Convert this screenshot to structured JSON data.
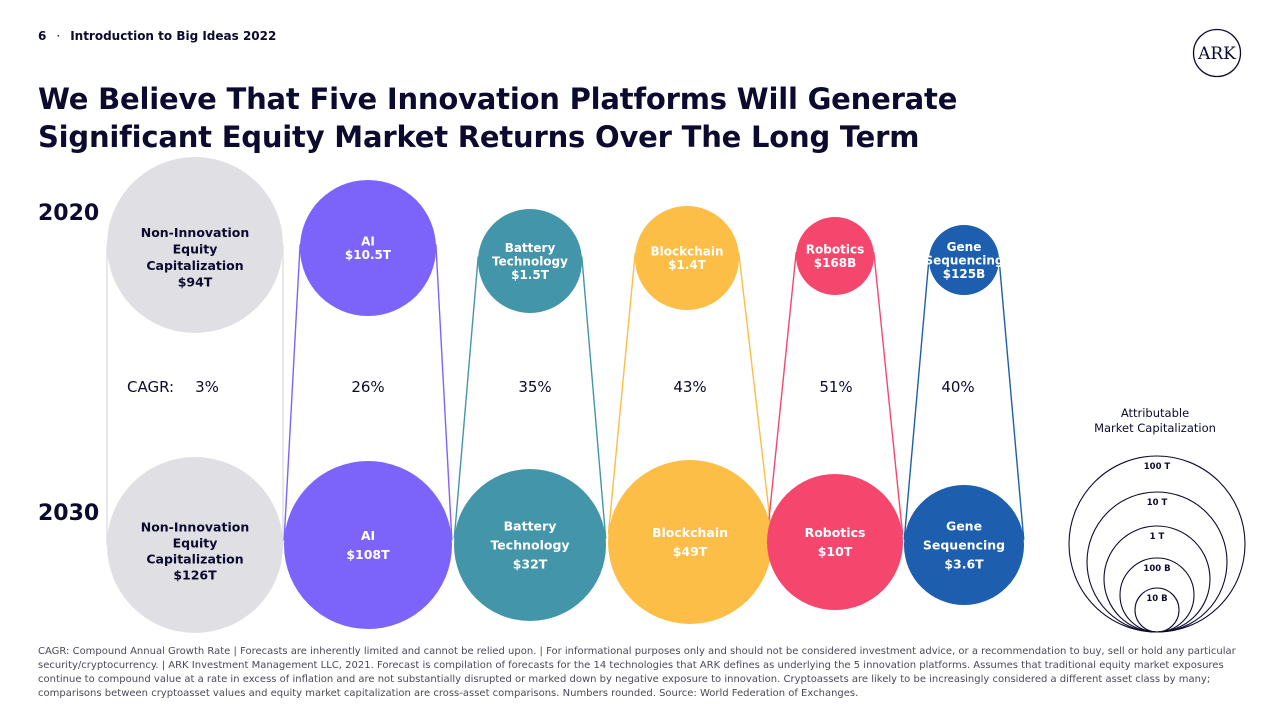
{
  "header": {
    "page_number": "6",
    "separator": "·",
    "section": "Introduction to Big Ideas 2022"
  },
  "title": {
    "line1": "We Believe That Five Innovation Platforms Will Generate",
    "line2": "Significant Equity Market Returns Over The Long Term"
  },
  "logo": {
    "icon": "ark-logo-icon",
    "text": "ARK"
  },
  "years": {
    "top": "2020",
    "bottom": "2030"
  },
  "cagr_label": "CAGR:",
  "platforms": [
    {
      "top_lines": [
        "Non-Innovation",
        "Equity",
        "Capitalization",
        "$94T"
      ],
      "bottom_lines": [
        "Non-Innovation",
        "Equity",
        "Capitalization",
        "$126T"
      ],
      "cagr": "3%",
      "color": "#dfdfe4",
      "text_color": "#0c0a2e"
    },
    {
      "top_lines": [
        "AI",
        "$10.5T"
      ],
      "bottom_lines": [
        "AI",
        "$108T"
      ],
      "cagr": "26%",
      "color": "#7c64fb",
      "text_color": "#ffffff"
    },
    {
      "top_lines": [
        "Battery",
        "Technology",
        "$1.5T"
      ],
      "bottom_lines": [
        "Battery",
        "Technology",
        "$32T"
      ],
      "cagr": "35%",
      "color": "#4396a9",
      "text_color": "#ffffff"
    },
    {
      "top_lines": [
        "Blockchain",
        "$1.4T"
      ],
      "bottom_lines": [
        "Blockchain",
        "$49T"
      ],
      "cagr": "43%",
      "color": "#fcbe46",
      "text_color": "#ffffff"
    },
    {
      "top_lines": [
        "Robotics",
        "$168B"
      ],
      "bottom_lines": [
        "Robotics",
        "$10T"
      ],
      "cagr": "51%",
      "color": "#f5476e",
      "text_color": "#ffffff"
    },
    {
      "top_lines": [
        "Gene",
        "Sequencing",
        "$125B"
      ],
      "bottom_lines": [
        "Gene",
        "Sequencing",
        "$3.6T"
      ],
      "cagr": "40%",
      "color": "#1d5eae",
      "text_color": "#ffffff"
    }
  ],
  "legend": {
    "title_line1": "Attributable",
    "title_line2": "Market Capitalization",
    "rings": [
      "100 T",
      "10 T",
      "1 T",
      "100 B",
      "10 B"
    ]
  },
  "footnote": "CAGR: Compound Annual Growth Rate  |  Forecasts are inherently limited and cannot be relied upon.  |  For informational purposes only and should not be considered investment advice, or a recommendation to buy, sell or hold any particular security/cryptocurrency.  |  ARK Investment Management LLC, 2021. Forecast is compilation of forecasts for the 14 technologies that ARK defines as underlying the 5 innovation platforms. Assumes that traditional equity market exposures continue to compound value at a rate in excess of inflation and are not substantially disrupted or marked down by negative exposure to innovation. Cryptoassets are likely to be increasingly considered a different asset class by many; comparisons between cryptoasset values and equity market capitalization are cross-asset comparisons. Numbers rounded. Source: World Federation of Exchanges."
}
